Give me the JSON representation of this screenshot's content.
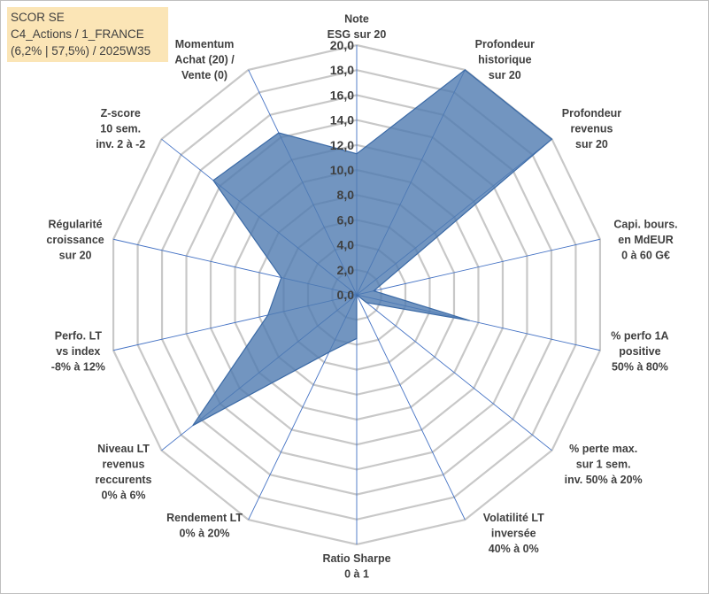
{
  "header": {
    "line1": "SCOR SE",
    "line2": "C4_Actions / 1_FRANCE",
    "line3": "(6,2% | 57,5%) / 2025W35"
  },
  "chart_data": {
    "type": "radar",
    "title": "",
    "axes": [
      [
        "Note",
        "ESG sur 20"
      ],
      [
        "Profondeur",
        "historique",
        "sur 20"
      ],
      [
        "Profondeur",
        "revenus",
        "sur 20"
      ],
      [
        "Capi. bours.",
        "en MdEUR",
        "0 à 60 G€"
      ],
      [
        "% perfo 1A",
        "positive",
        "50% à 80%"
      ],
      [
        "% perte max.",
        "sur 1 sem.",
        "inv. 50% à 20%"
      ],
      [
        "Volatilité LT",
        "inversée",
        "40% à 0%"
      ],
      [
        "Ratio Sharpe",
        "0 à 1"
      ],
      [
        "Rendement LT",
        "0% à 20%"
      ],
      [
        "Niveau LT",
        "revenus",
        "reccurents",
        "0% à 6%"
      ],
      [
        "Perfo. LT",
        "vs index",
        "-8% à 12%"
      ],
      [
        "Régularité",
        "croissance",
        "sur 20"
      ],
      [
        "Z-score",
        "10 sem.",
        "inv. 2 à -2"
      ],
      [
        "Momentum",
        "Achat (20) /",
        "Vente (0)"
      ]
    ],
    "series": [
      {
        "values": [
          11.3,
          20.0,
          20.0,
          1.4,
          9.3,
          1.0,
          0.0,
          3.5,
          5.1,
          16.8,
          7.3,
          6.2,
          14.7,
          14.4
        ]
      }
    ],
    "ylim": [
      0,
      20
    ],
    "ticks": [
      0,
      2,
      4,
      6,
      8,
      10,
      12,
      14,
      16,
      18,
      20
    ],
    "tick_labels": [
      "0,0",
      "2,0",
      "4,0",
      "6,0",
      "8,0",
      "10,0",
      "12,0",
      "14,0",
      "16,0",
      "18,0",
      "20,0"
    ],
    "grid": true,
    "legend": "none",
    "colors": {
      "fill": "#4f7ab0",
      "stroke": "#3b6aa6",
      "grid": "#c8c8c8",
      "spoke": "#4472c4"
    }
  }
}
